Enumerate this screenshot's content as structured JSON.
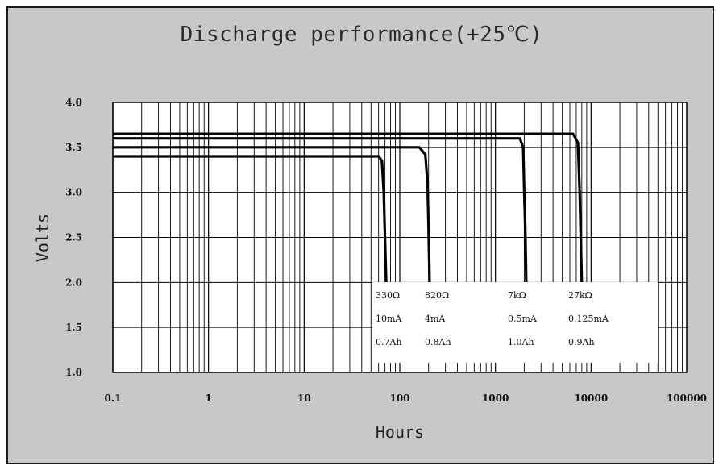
{
  "chart_data": {
    "type": "line",
    "title": "Discharge performance(+25℃)",
    "xlabel": "Hours",
    "ylabel": "Volts",
    "x_scale": "log",
    "xlim": [
      0.1,
      100000
    ],
    "ylim": [
      1.0,
      4.0
    ],
    "x_ticks": [
      "0.1",
      "1",
      "10",
      "100",
      "1000",
      "10000",
      "100000"
    ],
    "y_ticks": [
      "4.0",
      "3.5",
      "3.0",
      "2.5",
      "2.0",
      "1.5",
      "1.0"
    ],
    "grid": true,
    "series": [
      {
        "name": "330Ω",
        "current": "10mA",
        "capacity": "0.7Ah",
        "x": [
          0.1,
          60,
          65,
          68,
          70,
          72
        ],
        "y": [
          3.4,
          3.4,
          3.35,
          3.0,
          2.5,
          2.0
        ]
      },
      {
        "name": "820Ω",
        "current": "4mA",
        "capacity": "0.8Ah",
        "x": [
          0.1,
          160,
          185,
          195,
          200,
          205
        ],
        "y": [
          3.5,
          3.5,
          3.42,
          3.1,
          2.6,
          2.0
        ]
      },
      {
        "name": "7kΩ",
        "current": "0.5mA",
        "capacity": "1.0Ah",
        "x": [
          0.1,
          1800,
          1950,
          2000,
          2050,
          2100
        ],
        "y": [
          3.6,
          3.6,
          3.5,
          3.0,
          2.6,
          2.0
        ]
      },
      {
        "name": "27kΩ",
        "current": "0.125mA",
        "capacity": "0.9Ah",
        "x": [
          0.1,
          6500,
          7300,
          7600,
          7800,
          8000
        ],
        "y": [
          3.65,
          3.65,
          3.55,
          3.0,
          2.5,
          2.0
        ]
      }
    ]
  }
}
